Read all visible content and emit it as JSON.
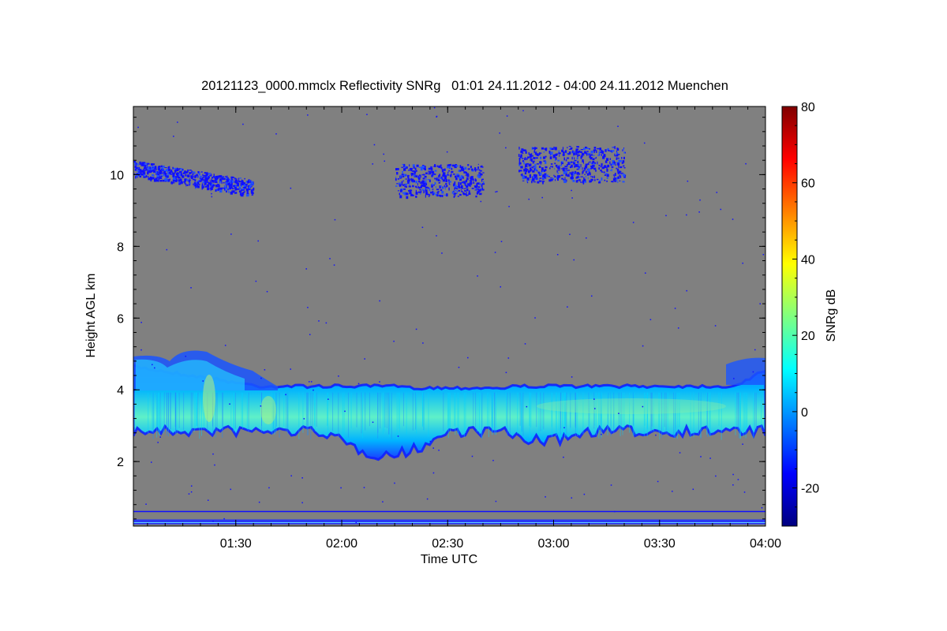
{
  "chart_data": {
    "type": "heatmap",
    "title": "20121123_0000.mmclx Reflectivity SNRg   01:01 24.11.2012 - 04:00 24.11.2012 Muenchen",
    "xlabel": "Time UTC",
    "ylabel": "Height AGL km",
    "x_range": [
      "01:01",
      "04:00"
    ],
    "x_ticks": [
      "01:30",
      "02:00",
      "02:30",
      "03:00",
      "03:30",
      "04:00"
    ],
    "ylim": [
      0.2,
      11.9
    ],
    "y_ticks": [
      2,
      4,
      6,
      8,
      10
    ],
    "background_color": "#808080",
    "colorbar": {
      "label": "SNRg dB",
      "range": [
        -30,
        80
      ],
      "ticks": [
        -20,
        0,
        20,
        40,
        60,
        80
      ],
      "colormap": "jet"
    },
    "features": [
      {
        "kind": "layer",
        "note": "main layer",
        "x_start": "01:01",
        "x_end": "04:00",
        "y_bottom": 3.0,
        "y_top": 4.1,
        "peak_snr": 25
      },
      {
        "kind": "cirrus",
        "x_start": "01:01",
        "x_end": "01:35",
        "y_bottom": 9.3,
        "y_top": 10.4
      },
      {
        "kind": "cirrus",
        "x_start": "02:15",
        "x_end": "02:40",
        "y_bottom": 9.4,
        "y_top": 10.3
      },
      {
        "kind": "cirrus",
        "x_start": "02:50",
        "x_end": "03:20",
        "y_bottom": 9.8,
        "y_top": 10.8
      },
      {
        "kind": "clutter",
        "x_start": "01:01",
        "x_end": "04:00",
        "y_bottom": 0.25,
        "y_top": 0.65
      }
    ]
  }
}
